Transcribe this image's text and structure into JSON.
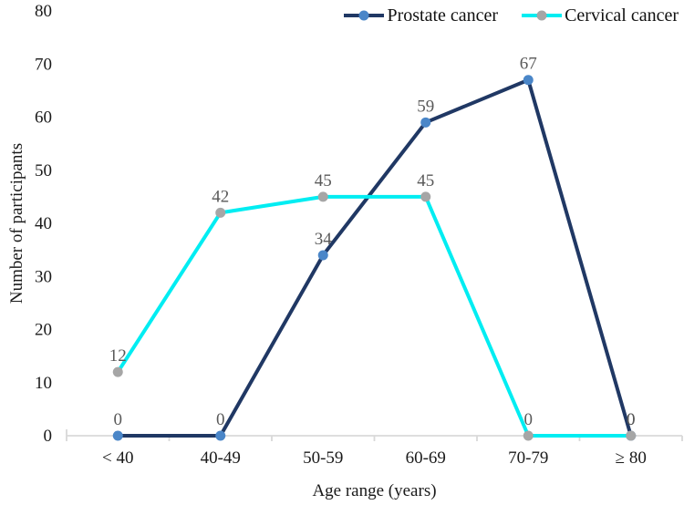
{
  "chart_data": {
    "type": "line",
    "categories": [
      "< 40",
      "40-49",
      "50-59",
      "60-69",
      "70-79",
      "≥ 80"
    ],
    "series": [
      {
        "name": "Prostate cancer",
        "values": [
          0,
          0,
          34,
          59,
          67,
          0
        ],
        "line_color": "#203864",
        "marker_color": "#4A86C8"
      },
      {
        "name": "Cervical cancer",
        "values": [
          12,
          42,
          45,
          45,
          0,
          0
        ],
        "line_color": "#00EDF2",
        "marker_color": "#A6A6A6"
      }
    ],
    "xlabel": "Age range (years)",
    "ylabel": "Number of participants",
    "ylim": [
      0,
      80
    ],
    "ytick_step": 10,
    "yticks": [
      0,
      10,
      20,
      30,
      40,
      50,
      60,
      70,
      80
    ],
    "grid": false,
    "legend_position": "top-right",
    "axis_color": "#D9D9D9",
    "data_label_color": "#595959",
    "tick_label_color": "#1a1a1a"
  }
}
